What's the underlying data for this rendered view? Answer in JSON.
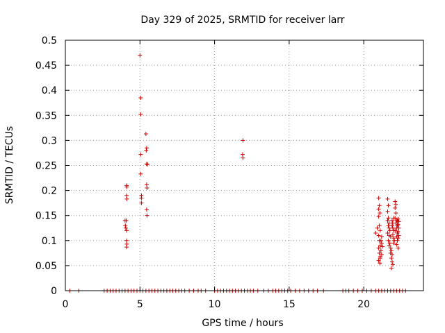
{
  "chart_data": {
    "type": "scatter",
    "title": "Day 329 of 2025, SRMTID for receiver larr",
    "xlabel": "GPS time / hours",
    "ylabel": "SRMTID / TECUs",
    "xlim": [
      0,
      24
    ],
    "ylim": [
      0,
      0.5
    ],
    "xticks": [
      0,
      5,
      10,
      15,
      20
    ],
    "xtick_labels": [
      "0",
      "5",
      "10",
      "15",
      "20"
    ],
    "yticks": [
      0,
      0.05,
      0.1,
      0.15,
      0.2,
      0.25,
      0.3,
      0.35,
      0.4,
      0.45,
      0.5
    ],
    "ytick_labels": [
      "0",
      "0.05",
      "0.1",
      "0.15",
      "0.2",
      "0.25",
      "0.3",
      "0.35",
      "0.4",
      "0.45",
      "0.5"
    ],
    "grid": true,
    "marker": "plus",
    "color": "#cc0000",
    "series": [
      {
        "points": [
          [
            4.0,
            0.14
          ],
          [
            4.02,
            0.13
          ],
          [
            4.05,
            0.125
          ],
          [
            4.08,
            0.14
          ],
          [
            4.1,
            0.12
          ],
          [
            4.1,
            0.21
          ],
          [
            4.12,
            0.207
          ],
          [
            4.1,
            0.19
          ],
          [
            4.12,
            0.183
          ],
          [
            4.1,
            0.1
          ],
          [
            4.12,
            0.093
          ],
          [
            4.1,
            0.087
          ],
          [
            5.0,
            0.47
          ],
          [
            5.05,
            0.385
          ],
          [
            5.05,
            0.352
          ],
          [
            5.05,
            0.272
          ],
          [
            5.05,
            0.233
          ],
          [
            5.1,
            0.19
          ],
          [
            5.1,
            0.185
          ],
          [
            5.1,
            0.175
          ],
          [
            5.4,
            0.313
          ],
          [
            5.42,
            0.28
          ],
          [
            5.45,
            0.285
          ],
          [
            5.45,
            0.253
          ],
          [
            5.5,
            0.252
          ],
          [
            5.45,
            0.212
          ],
          [
            5.47,
            0.205
          ],
          [
            5.45,
            0.162
          ],
          [
            5.47,
            0.15
          ],
          [
            11.9,
            0.3
          ],
          [
            11.88,
            0.272
          ],
          [
            11.9,
            0.265
          ],
          [
            20.8,
            0.115
          ],
          [
            20.9,
            0.125
          ],
          [
            21.0,
            0.185
          ],
          [
            21.05,
            0.17
          ],
          [
            21.0,
            0.163
          ],
          [
            21.08,
            0.155
          ],
          [
            21.0,
            0.148
          ],
          [
            21.05,
            0.13
          ],
          [
            21.1,
            0.12
          ],
          [
            21.0,
            0.11
          ],
          [
            21.05,
            0.1
          ],
          [
            21.1,
            0.09
          ],
          [
            21.0,
            0.085
          ],
          [
            21.05,
            0.075
          ],
          [
            21.1,
            0.068
          ],
          [
            21.0,
            0.06
          ],
          [
            21.08,
            0.055
          ],
          [
            21.1,
            0.065
          ],
          [
            21.15,
            0.08
          ],
          [
            21.2,
            0.095
          ],
          [
            21.2,
            0.108
          ],
          [
            21.15,
            0.1
          ],
          [
            21.25,
            0.088
          ],
          [
            21.2,
            0.072
          ],
          [
            21.6,
            0.183
          ],
          [
            21.65,
            0.17
          ],
          [
            21.6,
            0.158
          ],
          [
            21.65,
            0.145
          ],
          [
            21.6,
            0.14
          ],
          [
            21.7,
            0.135
          ],
          [
            21.65,
            0.13
          ],
          [
            21.7,
            0.125
          ],
          [
            21.75,
            0.12
          ],
          [
            21.6,
            0.115
          ],
          [
            21.7,
            0.11
          ],
          [
            21.8,
            0.108
          ],
          [
            21.65,
            0.1
          ],
          [
            21.75,
            0.095
          ],
          [
            21.7,
            0.09
          ],
          [
            21.8,
            0.085
          ],
          [
            21.85,
            0.08
          ],
          [
            21.8,
            0.075
          ],
          [
            21.9,
            0.072
          ],
          [
            21.85,
            0.065
          ],
          [
            21.9,
            0.058
          ],
          [
            21.85,
            0.045
          ],
          [
            21.95,
            0.052
          ],
          [
            21.9,
            0.13
          ],
          [
            21.95,
            0.125
          ],
          [
            22.0,
            0.12
          ],
          [
            21.95,
            0.112
          ],
          [
            22.0,
            0.105
          ],
          [
            22.05,
            0.1
          ],
          [
            22.0,
            0.095
          ],
          [
            21.9,
            0.14
          ],
          [
            22.0,
            0.145
          ],
          [
            21.95,
            0.135
          ],
          [
            22.1,
            0.178
          ],
          [
            22.15,
            0.172
          ],
          [
            22.1,
            0.165
          ],
          [
            22.15,
            0.155
          ],
          [
            22.1,
            0.145
          ],
          [
            22.2,
            0.14
          ],
          [
            22.15,
            0.135
          ],
          [
            22.25,
            0.13
          ],
          [
            22.2,
            0.125
          ],
          [
            22.1,
            0.12
          ],
          [
            22.25,
            0.115
          ],
          [
            22.2,
            0.108
          ],
          [
            22.3,
            0.105
          ],
          [
            22.25,
            0.1
          ],
          [
            22.2,
            0.092
          ],
          [
            22.3,
            0.085
          ],
          [
            22.25,
            0.14
          ],
          [
            22.3,
            0.143
          ],
          [
            22.35,
            0.138
          ],
          [
            22.3,
            0.132
          ],
          [
            22.35,
            0.125
          ],
          [
            22.3,
            0.118
          ],
          [
            22.35,
            0.11
          ],
          [
            0.3,
            0
          ],
          [
            0.9,
            0
          ],
          [
            2.6,
            0
          ],
          [
            2.8,
            0
          ],
          [
            3.0,
            0
          ],
          [
            3.2,
            0
          ],
          [
            3.4,
            0
          ],
          [
            3.6,
            0
          ],
          [
            3.8,
            0
          ],
          [
            4.0,
            0
          ],
          [
            4.2,
            0
          ],
          [
            4.4,
            0
          ],
          [
            4.6,
            0
          ],
          [
            4.8,
            0
          ],
          [
            5.0,
            0
          ],
          [
            5.2,
            0
          ],
          [
            5.4,
            0
          ],
          [
            5.6,
            0
          ],
          [
            5.8,
            0
          ],
          [
            6.0,
            0
          ],
          [
            6.2,
            0
          ],
          [
            6.4,
            0
          ],
          [
            6.6,
            0
          ],
          [
            6.8,
            0
          ],
          [
            7.0,
            0
          ],
          [
            7.2,
            0
          ],
          [
            7.4,
            0
          ],
          [
            7.6,
            0
          ],
          [
            7.8,
            0
          ],
          [
            8.0,
            0
          ],
          [
            8.3,
            0
          ],
          [
            8.6,
            0
          ],
          [
            8.9,
            0
          ],
          [
            9.1,
            0
          ],
          [
            9.4,
            0
          ],
          [
            10.0,
            0
          ],
          [
            10.2,
            0
          ],
          [
            10.4,
            0
          ],
          [
            10.6,
            0
          ],
          [
            10.8,
            0
          ],
          [
            11.0,
            0
          ],
          [
            11.2,
            0
          ],
          [
            11.4,
            0
          ],
          [
            11.6,
            0
          ],
          [
            11.8,
            0
          ],
          [
            12.0,
            0
          ],
          [
            12.2,
            0
          ],
          [
            12.4,
            0
          ],
          [
            12.6,
            0
          ],
          [
            12.9,
            0
          ],
          [
            13.3,
            0
          ],
          [
            13.6,
            0
          ],
          [
            13.9,
            0
          ],
          [
            14.1,
            0
          ],
          [
            14.3,
            0
          ],
          [
            14.5,
            0
          ],
          [
            14.7,
            0
          ],
          [
            14.9,
            0
          ],
          [
            15.1,
            0
          ],
          [
            15.4,
            0
          ],
          [
            15.7,
            0
          ],
          [
            16.0,
            0
          ],
          [
            16.3,
            0
          ],
          [
            16.6,
            0
          ],
          [
            16.9,
            0
          ],
          [
            17.3,
            0
          ],
          [
            18.6,
            0
          ],
          [
            18.8,
            0
          ],
          [
            19.0,
            0
          ],
          [
            19.3,
            0
          ],
          [
            19.6,
            0
          ],
          [
            19.9,
            0
          ],
          [
            20.2,
            0
          ],
          [
            20.5,
            0
          ],
          [
            20.8,
            0
          ],
          [
            21.0,
            0
          ],
          [
            21.2,
            0
          ],
          [
            21.4,
            0
          ],
          [
            21.6,
            0
          ],
          [
            21.8,
            0
          ],
          [
            22.0,
            0
          ],
          [
            22.2,
            0
          ],
          [
            22.4,
            0
          ],
          [
            22.6,
            0
          ],
          [
            22.8,
            0
          ]
        ]
      }
    ]
  }
}
